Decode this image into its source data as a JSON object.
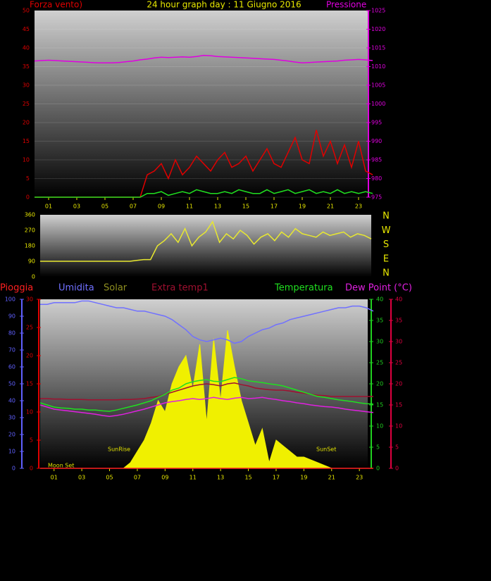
{
  "chart_data": [
    {
      "type": "line",
      "title": "24 hour graph day : 11 Giugno 2016",
      "left_label": "Forza vento)",
      "right_label": "Pressione",
      "xlim": [
        0,
        23.65
      ],
      "xticks": [
        {
          "value": 1,
          "label": "01"
        },
        {
          "value": 3,
          "label": "03"
        },
        {
          "value": 5,
          "label": "05"
        },
        {
          "value": 7,
          "label": "07"
        },
        {
          "value": 9,
          "label": "09"
        },
        {
          "value": 11,
          "label": "11"
        },
        {
          "value": 13,
          "label": "13"
        },
        {
          "value": 15,
          "label": "15"
        },
        {
          "value": 17,
          "label": "17"
        },
        {
          "value": 19,
          "label": "19"
        },
        {
          "value": 21,
          "label": "21"
        },
        {
          "value": 23,
          "label": "23"
        }
      ],
      "ylim": [
        0,
        50
      ],
      "yticks": [
        0,
        5,
        10,
        15,
        20,
        25,
        30,
        35,
        40,
        45,
        50
      ],
      "y2lim": [
        975,
        1025
      ],
      "y2ticks": [
        975,
        980,
        985,
        990,
        995,
        1000,
        1005,
        1010,
        1015,
        1020,
        1025
      ],
      "grid": true,
      "x": [
        0,
        0.5,
        1,
        1.5,
        2,
        2.5,
        3,
        3.5,
        4,
        4.5,
        5,
        5.5,
        6,
        6.5,
        7,
        7.5,
        8,
        8.5,
        9,
        9.5,
        10,
        10.5,
        11,
        11.5,
        12,
        12.5,
        13,
        13.5,
        14,
        14.5,
        15,
        15.5,
        16,
        16.5,
        17,
        17.5,
        18,
        18.5,
        19,
        19.5,
        20,
        20.5,
        21,
        21.5,
        22,
        22.5,
        23,
        23.5,
        24
      ],
      "series": [
        {
          "color": "#e000e0",
          "axis": "y2",
          "values": [
            1011.5,
            1011.6,
            1011.7,
            1011.6,
            1011.5,
            1011.4,
            1011.3,
            1011.2,
            1011.1,
            1011.0,
            1011.0,
            1011.0,
            1011.1,
            1011.3,
            1011.5,
            1011.8,
            1012.0,
            1012.3,
            1012.5,
            1012.4,
            1012.5,
            1012.6,
            1012.5,
            1012.7,
            1013.0,
            1012.9,
            1012.7,
            1012.6,
            1012.5,
            1012.4,
            1012.3,
            1012.2,
            1012.1,
            1012.0,
            1011.9,
            1011.7,
            1011.5,
            1011.2,
            1011.0,
            1011.1,
            1011.2,
            1011.3,
            1011.4,
            1011.5,
            1011.7,
            1011.8,
            1011.9,
            1011.8,
            1011.6
          ]
        },
        {
          "color": "#e00000",
          "values": [
            0,
            0,
            0,
            0,
            0,
            0,
            0,
            0,
            0,
            0,
            0,
            0,
            0,
            0,
            0,
            0,
            6,
            7,
            9,
            5,
            10,
            6,
            8,
            11,
            9,
            7,
            10,
            12,
            8,
            9,
            11,
            7,
            10,
            13,
            9,
            8,
            12,
            16,
            10,
            9,
            18,
            11,
            15,
            9,
            14,
            8,
            15,
            7,
            6
          ]
        },
        {
          "color": "#20e020",
          "values": [
            0,
            0,
            0,
            0,
            0,
            0,
            0,
            0,
            0,
            0,
            0,
            0,
            0,
            0,
            0,
            0,
            1,
            1,
            1.5,
            0.5,
            1,
            1.5,
            1,
            2,
            1.5,
            1,
            1,
            1.5,
            1,
            2,
            1.5,
            1,
            1,
            2,
            1,
            1.5,
            2,
            1,
            1.5,
            2,
            1,
            1.5,
            1,
            2,
            1,
            1.5,
            1,
            1.5,
            1
          ]
        }
      ]
    },
    {
      "type": "line",
      "xlim": [
        0,
        24
      ],
      "ylim": [
        0,
        360
      ],
      "yticks": [
        0,
        90,
        180,
        270,
        360
      ],
      "direction_labels": [
        "N",
        "W",
        "S",
        "E",
        "N"
      ],
      "x": [
        0,
        0.5,
        1,
        1.5,
        2,
        2.5,
        3,
        3.5,
        4,
        4.5,
        5,
        5.5,
        6,
        6.5,
        7,
        7.5,
        8,
        8.5,
        9,
        9.5,
        10,
        10.5,
        11,
        11.5,
        12,
        12.5,
        13,
        13.5,
        14,
        14.5,
        15,
        15.5,
        16,
        16.5,
        17,
        17.5,
        18,
        18.5,
        19,
        19.5,
        20,
        20.5,
        21,
        21.5,
        22,
        22.5,
        23,
        23.5,
        24
      ],
      "series": [
        {
          "color": "#e8e830",
          "values": [
            90,
            90,
            90,
            90,
            90,
            90,
            90,
            90,
            90,
            90,
            90,
            90,
            90,
            90,
            95,
            100,
            100,
            180,
            210,
            250,
            200,
            280,
            180,
            230,
            260,
            320,
            200,
            250,
            220,
            270,
            240,
            190,
            230,
            250,
            210,
            260,
            230,
            280,
            250,
            240,
            230,
            260,
            240,
            250,
            260,
            230,
            250,
            240,
            220
          ]
        }
      ]
    },
    {
      "type": "line",
      "xlim": [
        0,
        23.6
      ],
      "xticks": [
        {
          "value": 1,
          "label": "01"
        },
        {
          "value": 3,
          "label": "03"
        },
        {
          "value": 5,
          "label": "05"
        },
        {
          "value": 7,
          "label": "07"
        },
        {
          "value": 9,
          "label": "09"
        },
        {
          "value": 11,
          "label": "11"
        },
        {
          "value": 13,
          "label": "13"
        },
        {
          "value": 15,
          "label": "15"
        },
        {
          "value": 17,
          "label": "17"
        },
        {
          "value": 19,
          "label": "19"
        },
        {
          "value": 21,
          "label": "21"
        },
        {
          "value": 23,
          "label": "23"
        }
      ],
      "ylim": [
        0,
        30
      ],
      "yticks": [
        0,
        5,
        10,
        15,
        20,
        25,
        30
      ],
      "y2lim": [
        0,
        40
      ],
      "y2ticks": [
        0,
        5,
        10,
        15,
        20,
        25,
        30,
        35,
        40
      ],
      "y3lim": [
        0,
        100
      ],
      "y3ticks": [
        0,
        10,
        20,
        30,
        40,
        50,
        60,
        70,
        80,
        90,
        100
      ],
      "y4lim": [
        0,
        40
      ],
      "y4ticks": [
        0,
        5,
        10,
        15,
        20,
        25,
        30,
        35,
        40
      ],
      "annotations": [
        "Moon Set",
        "SunRise",
        "SunSet"
      ],
      "x": [
        0,
        0.5,
        1,
        1.5,
        2,
        2.5,
        3,
        3.5,
        4,
        4.5,
        5,
        5.5,
        6,
        6.5,
        7,
        7.5,
        8,
        8.5,
        9,
        9.5,
        10,
        10.5,
        11,
        11.5,
        12,
        12.5,
        13,
        13.5,
        14,
        14.5,
        15,
        15.5,
        16,
        16.5,
        17,
        17.5,
        18,
        18.5,
        19,
        19.5,
        20,
        20.5,
        21,
        21.5,
        22,
        22.5,
        23,
        23.5,
        24
      ],
      "series": [
        {
          "name": "Solar",
          "color": "#f0f000",
          "style": "area",
          "values": [
            0,
            0,
            0,
            0,
            0,
            0,
            0,
            0,
            0,
            0,
            0,
            0,
            0,
            1,
            3,
            5,
            8,
            12,
            10,
            15,
            18,
            20,
            14,
            22,
            8,
            23,
            12,
            24.5,
            18,
            12,
            8,
            4,
            7,
            1,
            5,
            4,
            3,
            2,
            2,
            1.5,
            1,
            0.5,
            0,
            0,
            0,
            0,
            0,
            0,
            0
          ]
        },
        {
          "name": "Umidita",
          "color": "#7070ff",
          "axis": "y3",
          "values": [
            97,
            97,
            98,
            98,
            98,
            98,
            99,
            99,
            98,
            97,
            96,
            95,
            95,
            94,
            93,
            93,
            92,
            91,
            90,
            88,
            85,
            82,
            78,
            76,
            75,
            76,
            77,
            76,
            74,
            75,
            78,
            80,
            82,
            83,
            85,
            86,
            88,
            89,
            90,
            91,
            92,
            93,
            94,
            95,
            95,
            96,
            96,
            95,
            93
          ]
        },
        {
          "name": "Extra temp1",
          "color": "#a01030",
          "axis": "y4",
          "values": [
            16.5,
            16.5,
            16.4,
            16.4,
            16.3,
            16.3,
            16.3,
            16.2,
            16.2,
            16.2,
            16.2,
            16.2,
            16.3,
            16.3,
            16.4,
            16.5,
            16.8,
            17,
            17.5,
            18,
            18.5,
            19,
            19.5,
            19.8,
            20,
            19.8,
            19.5,
            20,
            20.2,
            19.8,
            19.5,
            19,
            18.8,
            18.6,
            18.5,
            18.5,
            18.3,
            18,
            17.8,
            17.5,
            17.3,
            17.2,
            17,
            17,
            17,
            17,
            17,
            17,
            17
          ]
        },
        {
          "name": "Temperatura",
          "color": "#20e020",
          "axis": "y2",
          "values": [
            15.5,
            15,
            14.5,
            14.3,
            14.2,
            14,
            14,
            13.8,
            13.8,
            13.6,
            13.5,
            13.8,
            14.2,
            14.6,
            15,
            15.5,
            16,
            16.8,
            17.5,
            18.5,
            19,
            20,
            20.5,
            20.8,
            21,
            20.6,
            20.5,
            21,
            21.5,
            21.2,
            20.7,
            20.5,
            20.3,
            20,
            19.8,
            19.5,
            19,
            18.5,
            18,
            17.5,
            17,
            16.8,
            16.5,
            16.2,
            16,
            15.8,
            15.5,
            15.3,
            15.2
          ]
        },
        {
          "name": "Dew Point (°C)",
          "color": "#e020e0",
          "axis": "y4",
          "values": [
            15,
            14.5,
            14,
            13.8,
            13.6,
            13.4,
            13.2,
            13,
            12.8,
            12.5,
            12.3,
            12.5,
            12.8,
            13.2,
            13.6,
            14,
            14.5,
            15,
            15.5,
            15.8,
            16,
            16.3,
            16.5,
            16.3,
            16.5,
            16.8,
            16.5,
            16.3,
            16.6,
            16.8,
            16.5,
            16.6,
            16.8,
            16.5,
            16.3,
            16,
            15.8,
            15.5,
            15.3,
            15,
            14.8,
            14.6,
            14.5,
            14.3,
            14,
            13.8,
            13.6,
            13.4,
            13.2
          ]
        },
        {
          "name": "Pioggia",
          "color": "#ff2020",
          "values": [
            0,
            0,
            0,
            0,
            0,
            0,
            0,
            0,
            0,
            0,
            0,
            0,
            0,
            0,
            0,
            0,
            0,
            0,
            0,
            0,
            0,
            0,
            0,
            0,
            0,
            0,
            0,
            0,
            0,
            0,
            0,
            0,
            0,
            0,
            0,
            0,
            0,
            0,
            0,
            0,
            0,
            0,
            0,
            0,
            0,
            0,
            0,
            0,
            0
          ]
        }
      ]
    }
  ]
}
